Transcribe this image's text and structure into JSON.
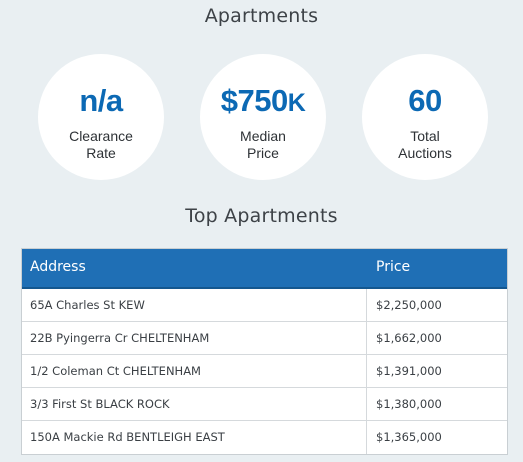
{
  "sections": {
    "apartments_title": "Apartments",
    "top_title": "Top Apartments"
  },
  "stats": [
    {
      "value": "n/a",
      "suffix": "",
      "label_line1": "Clearance",
      "label_line2": "Rate"
    },
    {
      "value": "$750",
      "suffix": "K",
      "label_line1": "Median",
      "label_line2": "Price"
    },
    {
      "value": "60",
      "suffix": "",
      "label_line1": "Total",
      "label_line2": "Auctions"
    }
  ],
  "table": {
    "headers": {
      "address": "Address",
      "price": "Price"
    },
    "rows": [
      {
        "address": "65A Charles St KEW",
        "price": "$2,250,000"
      },
      {
        "address": "22B Pyingerra Cr CHELTENHAM",
        "price": "$1,662,000"
      },
      {
        "address": "1/2 Coleman Ct CHELTENHAM",
        "price": "$1,391,000"
      },
      {
        "address": "3/3 First St BLACK ROCK",
        "price": "$1,380,000"
      },
      {
        "address": "150A Mackie Rd BENTLEIGH EAST",
        "price": "$1,365,000"
      }
    ]
  },
  "colors": {
    "accent": "#0c69b4",
    "header_bg": "#1f6fb5",
    "page_bg": "#e9eff2"
  }
}
